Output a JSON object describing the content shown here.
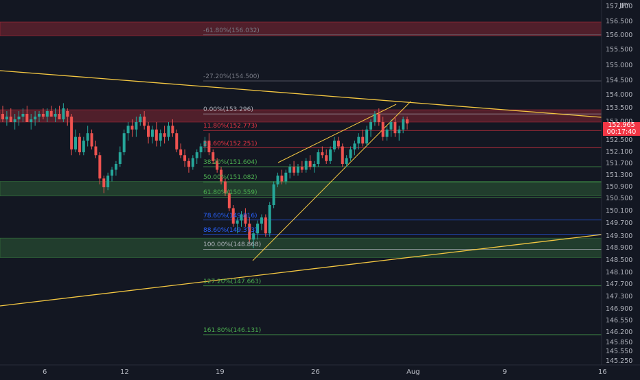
{
  "chart_data": {
    "type": "candlestick",
    "currency": "JPY",
    "ylim": [
      145.0,
      157.3
    ],
    "y_ticks": [
      "157.000",
      "156.500",
      "156.000",
      "155.500",
      "155.000",
      "154.500",
      "154.000",
      "153.500",
      "153.000",
      "152.500",
      "152.100",
      "151.700",
      "151.300",
      "150.900",
      "150.500",
      "150.100",
      "149.700",
      "149.300",
      "148.900",
      "148.500",
      "148.100",
      "147.700",
      "147.300",
      "146.900",
      "146.550",
      "146.200",
      "145.850",
      "145.550",
      "145.250"
    ],
    "x_labels": [
      "6",
      "12",
      "19",
      "26",
      "Aug",
      "9",
      "16"
    ],
    "last_price": "152.965",
    "countdown": "00:17:40",
    "fib_levels": [
      {
        "label": "-61.80%(156.032)",
        "price": 156.032,
        "color": "#787b86"
      },
      {
        "label": "-27.20%(154.500)",
        "price": 154.5,
        "color": "#787b86"
      },
      {
        "label": "0.00%(153.296)",
        "price": 153.296,
        "color": "#b2b5be"
      },
      {
        "label": "11.80%(152.773)",
        "price": 152.773,
        "color": "#f23645"
      },
      {
        "label": "23.60%(152.251)",
        "price": 152.251,
        "color": "#f23645"
      },
      {
        "label": "38.20%(151.604)",
        "price": 151.604,
        "color": "#4caf50"
      },
      {
        "label": "50.00%(151.082)",
        "price": 151.082,
        "color": "#4caf50"
      },
      {
        "label": "61.80%(150.559)",
        "price": 150.559,
        "color": "#4caf50"
      },
      {
        "label": "78.60%(149.816)",
        "price": 149.816,
        "color": "#2962ff"
      },
      {
        "label": "88.60%(149.373)",
        "price": 149.373,
        "color": "#2962ff"
      },
      {
        "label": "100.00%(148.868)",
        "price": 148.868,
        "color": "#b2b5be"
      },
      {
        "label": "127.20%(147.663)",
        "price": 147.663,
        "color": "#4caf50"
      },
      {
        "label": "161.80%(146.131)",
        "price": 146.131,
        "color": "#4caf50"
      }
    ],
    "zones": [
      {
        "from": 156.0,
        "to": 156.5,
        "color": "red"
      },
      {
        "from": 153.0,
        "to": 153.45,
        "color": "red"
      },
      {
        "from": 150.6,
        "to": 151.1,
        "color": "green"
      },
      {
        "from": 148.6,
        "to": 149.25,
        "color": "green"
      }
    ],
    "candles": [
      [
        153.3,
        153.6,
        153.0,
        153.1
      ],
      [
        153.1,
        153.4,
        152.9,
        153.2
      ],
      [
        153.2,
        153.5,
        153.0,
        153.0
      ],
      [
        153.0,
        153.3,
        152.8,
        153.1
      ],
      [
        153.1,
        153.4,
        152.9,
        153.2
      ],
      [
        153.2,
        153.5,
        153.0,
        153.3
      ],
      [
        153.3,
        153.6,
        153.0,
        153.0
      ],
      [
        153.0,
        153.3,
        152.8,
        153.1
      ],
      [
        153.1,
        153.4,
        152.9,
        153.2
      ],
      [
        153.2,
        153.4,
        153.0,
        153.3
      ],
      [
        153.3,
        153.5,
        153.1,
        153.2
      ],
      [
        153.2,
        153.5,
        153.0,
        153.4
      ],
      [
        153.4,
        153.6,
        153.2,
        153.2
      ],
      [
        153.2,
        153.5,
        153.0,
        153.3
      ],
      [
        153.3,
        153.6,
        153.1,
        153.1
      ],
      [
        153.1,
        153.7,
        153.0,
        153.5
      ],
      [
        153.4,
        153.5,
        152.9,
        153.2
      ],
      [
        153.2,
        153.3,
        152.0,
        152.2
      ],
      [
        152.2,
        152.8,
        152.1,
        152.6
      ],
      [
        152.6,
        152.7,
        152.0,
        152.1
      ],
      [
        152.1,
        152.6,
        152.0,
        152.5
      ],
      [
        152.5,
        152.9,
        152.3,
        152.7
      ],
      [
        152.7,
        152.8,
        152.2,
        152.3
      ],
      [
        152.3,
        152.5,
        151.9,
        152.0
      ],
      [
        152.0,
        152.1,
        151.0,
        151.2
      ],
      [
        151.2,
        151.3,
        150.7,
        150.9
      ],
      [
        150.9,
        151.4,
        150.8,
        151.3
      ],
      [
        151.3,
        151.6,
        151.1,
        151.5
      ],
      [
        151.5,
        151.8,
        151.3,
        151.7
      ],
      [
        151.7,
        152.3,
        151.6,
        152.1
      ],
      [
        152.1,
        152.8,
        152.0,
        152.7
      ],
      [
        152.7,
        153.0,
        152.5,
        152.9
      ],
      [
        152.9,
        153.1,
        152.6,
        152.8
      ],
      [
        152.8,
        153.2,
        152.6,
        153.0
      ],
      [
        153.0,
        153.3,
        152.9,
        153.2
      ],
      [
        153.2,
        153.4,
        152.8,
        152.9
      ],
      [
        152.9,
        153.0,
        152.4,
        152.6
      ],
      [
        152.6,
        152.9,
        152.4,
        152.8
      ],
      [
        152.8,
        153.0,
        152.3,
        152.5
      ],
      [
        152.5,
        152.8,
        152.3,
        152.7
      ],
      [
        152.7,
        152.9,
        152.4,
        152.6
      ],
      [
        152.6,
        153.0,
        152.5,
        152.9
      ],
      [
        152.9,
        153.1,
        152.6,
        152.7
      ],
      [
        152.7,
        152.8,
        152.1,
        152.2
      ],
      [
        152.2,
        152.4,
        151.9,
        152.0
      ],
      [
        152.0,
        152.2,
        151.6,
        151.8
      ],
      [
        151.8,
        151.9,
        151.4,
        151.6
      ],
      [
        151.6,
        152.0,
        151.5,
        151.9
      ],
      [
        151.9,
        152.2,
        151.7,
        152.1
      ],
      [
        152.1,
        152.4,
        151.9,
        152.3
      ],
      [
        152.3,
        152.6,
        152.1,
        152.5
      ],
      [
        152.5,
        152.7,
        152.0,
        152.1
      ],
      [
        152.1,
        152.2,
        151.7,
        151.8
      ],
      [
        151.8,
        151.9,
        151.4,
        151.5
      ],
      [
        151.5,
        151.6,
        151.0,
        151.1
      ],
      [
        151.1,
        151.2,
        150.6,
        150.7
      ],
      [
        150.7,
        150.8,
        150.1,
        150.2
      ],
      [
        150.2,
        150.3,
        149.6,
        149.7
      ],
      [
        149.7,
        149.9,
        149.4,
        149.8
      ],
      [
        149.8,
        150.1,
        149.6,
        150.0
      ],
      [
        150.0,
        150.2,
        149.6,
        149.7
      ],
      [
        149.7,
        149.9,
        149.1,
        149.2
      ],
      [
        149.2,
        149.5,
        148.9,
        149.4
      ],
      [
        149.4,
        149.8,
        149.2,
        149.7
      ],
      [
        149.7,
        150.0,
        149.5,
        149.9
      ],
      [
        149.9,
        150.0,
        149.3,
        149.4
      ],
      [
        149.4,
        150.4,
        149.3,
        150.3
      ],
      [
        150.3,
        151.1,
        150.2,
        151.0
      ],
      [
        151.0,
        151.4,
        150.9,
        151.3
      ],
      [
        151.3,
        151.5,
        151.0,
        151.1
      ],
      [
        151.1,
        151.5,
        151.0,
        151.4
      ],
      [
        151.4,
        151.7,
        151.2,
        151.6
      ],
      [
        151.6,
        151.8,
        151.3,
        151.4
      ],
      [
        151.4,
        151.7,
        151.3,
        151.6
      ],
      [
        151.6,
        151.8,
        151.4,
        151.5
      ],
      [
        151.5,
        151.9,
        151.4,
        151.8
      ],
      [
        151.8,
        152.0,
        151.5,
        151.6
      ],
      [
        151.6,
        151.8,
        151.4,
        151.7
      ],
      [
        151.7,
        152.2,
        151.6,
        152.1
      ],
      [
        152.1,
        152.3,
        151.9,
        152.0
      ],
      [
        152.0,
        152.2,
        151.7,
        151.8
      ],
      [
        151.8,
        152.3,
        151.7,
        152.2
      ],
      [
        152.2,
        152.6,
        152.1,
        152.5
      ],
      [
        152.5,
        152.6,
        152.2,
        152.3
      ],
      [
        152.3,
        152.4,
        151.6,
        151.7
      ],
      [
        151.7,
        152.0,
        151.6,
        151.9
      ],
      [
        151.9,
        152.3,
        151.8,
        152.2
      ],
      [
        152.2,
        152.5,
        152.0,
        152.4
      ],
      [
        152.4,
        152.7,
        152.2,
        152.6
      ],
      [
        152.6,
        152.8,
        152.3,
        152.4
      ],
      [
        152.4,
        152.9,
        152.3,
        152.8
      ],
      [
        152.8,
        153.1,
        152.6,
        153.0
      ],
      [
        153.0,
        153.4,
        152.9,
        153.3
      ],
      [
        153.3,
        153.5,
        152.9,
        153.0
      ],
      [
        153.0,
        153.2,
        152.5,
        152.6
      ],
      [
        152.6,
        152.9,
        152.5,
        152.8
      ],
      [
        152.8,
        153.1,
        152.6,
        153.0
      ],
      [
        153.0,
        153.2,
        152.6,
        152.7
      ],
      [
        152.7,
        152.9,
        152.5,
        152.8
      ],
      [
        152.8,
        153.2,
        152.7,
        153.1
      ],
      [
        153.1,
        153.2,
        152.8,
        152.965
      ]
    ]
  }
}
